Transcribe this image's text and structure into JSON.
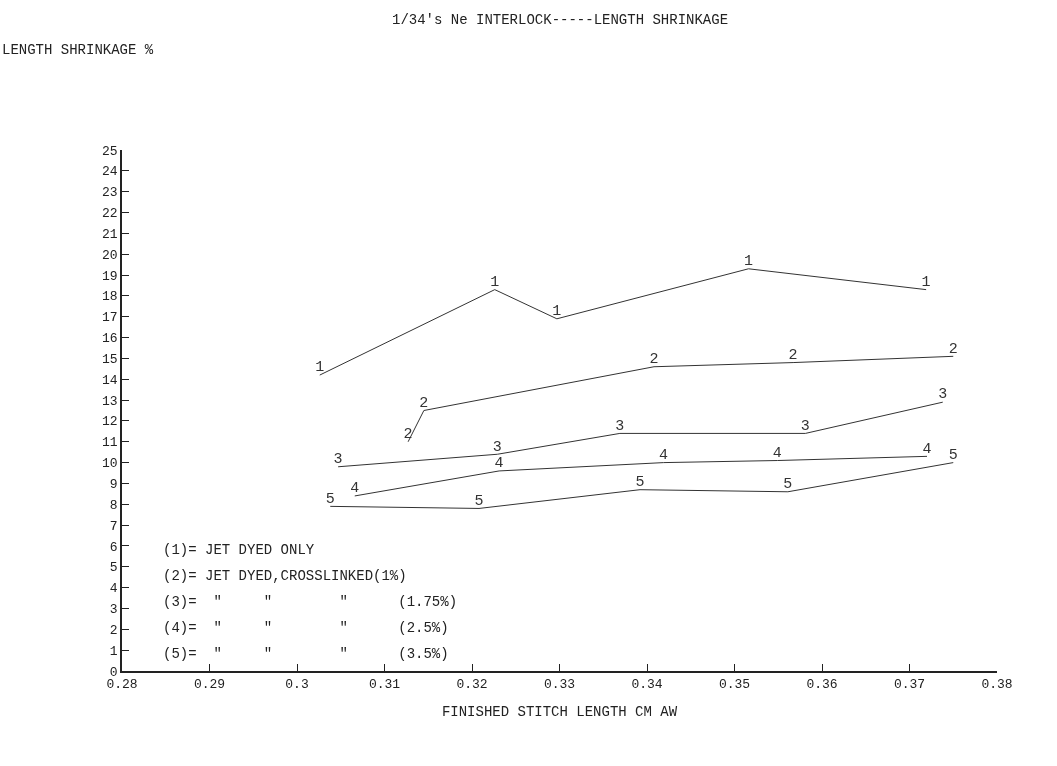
{
  "chart_data": {
    "type": "line",
    "title": "1/34's Ne INTERLOCK-----LENGTH SHRINKAGE",
    "xlabel": "FINISHED STITCH LENGTH CM AW",
    "series": [
      {
        "name": "1",
        "color": "#333333",
        "x": [
          0.3026,
          0.3226,
          0.3297,
          0.3516,
          0.3719
        ],
        "values": [
          14.2,
          18.3,
          16.9,
          19.3,
          18.3
        ]
      },
      {
        "name": "2",
        "color": "#333333",
        "x": [
          0.3127,
          0.3145,
          0.3408,
          0.3567,
          0.375
        ],
        "values": [
          11.0,
          12.5,
          14.6,
          14.8,
          15.1
        ]
      },
      {
        "name": "3",
        "color": "#333333",
        "x": [
          0.3047,
          0.3229,
          0.3369,
          0.3581,
          0.3738
        ],
        "values": [
          9.8,
          10.4,
          11.4,
          11.4,
          12.9
        ]
      },
      {
        "name": "4",
        "color": "#333333",
        "x": [
          0.3066,
          0.3231,
          0.3419,
          0.3549,
          0.372
        ],
        "values": [
          8.4,
          9.6,
          10.0,
          10.1,
          10.3
        ]
      },
      {
        "name": "5",
        "color": "#333333",
        "x": [
          0.3038,
          0.3208,
          0.3392,
          0.3561,
          0.375
        ],
        "values": [
          7.9,
          7.8,
          8.7,
          8.6,
          10.0
        ]
      }
    ],
    "annotations": [
      "LENGTH SHRINKAGE %",
      "(1)= JET DYED ONLY",
      "(2)= JET DYED,CROSSLINKED(1%)",
      "(3)=  \"     \"        \"      (1.75%)",
      "(4)=  \"     \"        \"      (2.5%)",
      "(5)=  \"     \"        \"      (3.5%)"
    ],
    "xlim": [
      0.28,
      0.38
    ],
    "xticks": [
      0.28,
      0.29,
      {
        "value": 0.3,
        "label": "0.3"
      },
      0.31,
      0.32,
      0.33,
      0.34,
      0.35,
      0.36,
      0.37,
      0.38
    ],
    "ylim": [
      0,
      25
    ],
    "yticks": [
      0,
      1,
      2,
      3,
      4,
      5,
      6,
      7,
      8,
      9,
      10,
      11,
      12,
      13,
      14,
      15,
      16,
      17,
      18,
      19,
      20,
      21,
      22,
      23,
      24,
      25
    ],
    "legend": false,
    "marker": "none",
    "line_style": "solid"
  }
}
